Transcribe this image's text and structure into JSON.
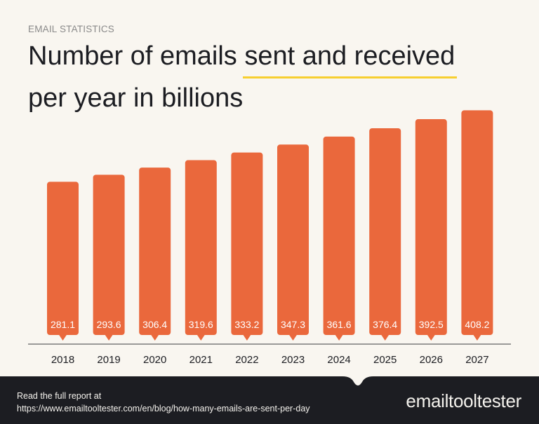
{
  "header": {
    "eyebrow": "EMAIL STATISTICS",
    "title_part1": "Number of emails ",
    "title_highlight": "sent and received",
    "title_part2": "per year in billions"
  },
  "colors": {
    "background": "#f9f6f0",
    "bar": "#ea683c",
    "highlight": "#f7cf2f",
    "footer": "#1c1d22",
    "axis": "#7a7a7a"
  },
  "chart_data": {
    "type": "bar",
    "categories": [
      "2018",
      "2019",
      "2020",
      "2021",
      "2022",
      "2023",
      "2024",
      "2025",
      "2026",
      "2027"
    ],
    "values": [
      281.1,
      293.6,
      306.4,
      319.6,
      333.2,
      347.3,
      361.6,
      376.4,
      392.5,
      408.2
    ],
    "data_labels": [
      "281.1",
      "293.6",
      "306.4",
      "319.6",
      "333.2",
      "347.3",
      "361.6",
      "376.4",
      "392.5",
      "408.2"
    ],
    "title": "Number of emails sent and received per year in billions",
    "xlabel": "",
    "ylabel": "",
    "ylim": [
      0,
      420
    ],
    "grid": false,
    "legend": "none"
  },
  "footer": {
    "line1": "Read the full report at",
    "line2": "https://www.emailtooltester.com/en/blog/how-many-emails-are-sent-per-day",
    "logo": "emailtooltester"
  }
}
